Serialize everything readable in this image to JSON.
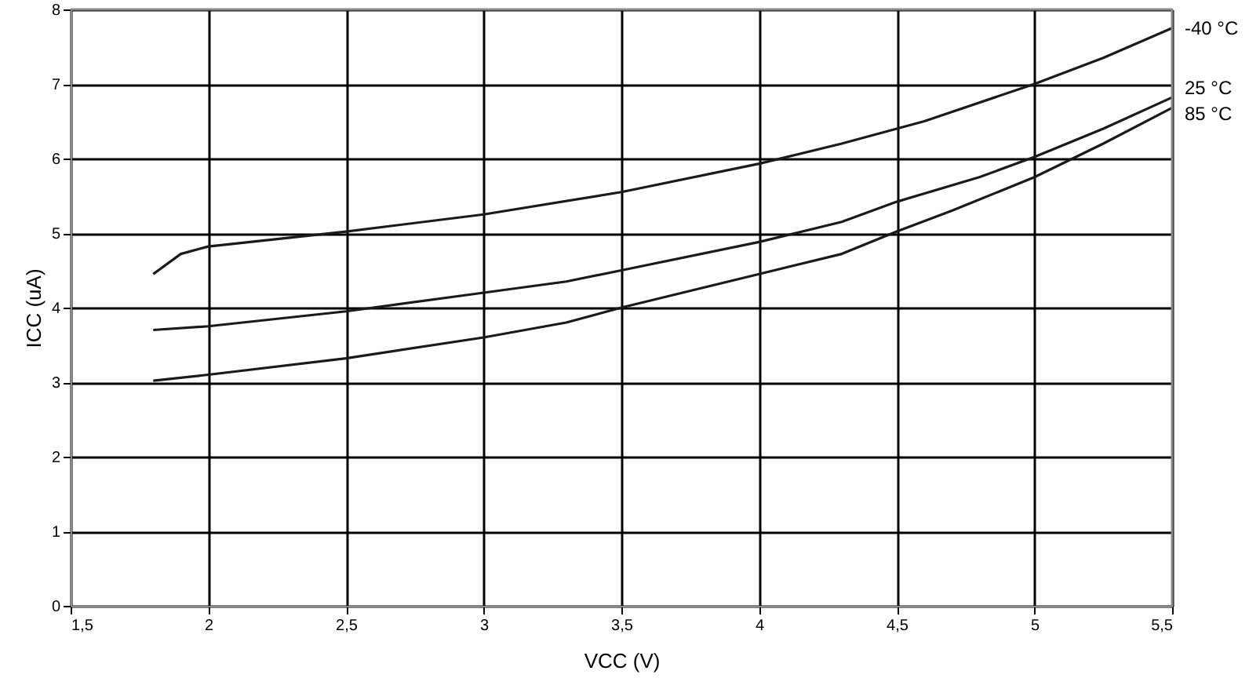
{
  "chart_data": {
    "type": "line",
    "xlabel": "VCC (V)",
    "ylabel": "ICC (uA)",
    "xlim": [
      1.5,
      5.5
    ],
    "ylim": [
      0,
      8
    ],
    "xticks": [
      {
        "value": 1.5,
        "label": "1,5"
      },
      2,
      {
        "value": 2.5,
        "label": "2,5"
      },
      3,
      {
        "value": 3.5,
        "label": "3,5"
      },
      4,
      {
        "value": 4.5,
        "label": "4,5"
      },
      5,
      {
        "value": 5.5,
        "label": "5,5"
      }
    ],
    "yticks": [
      0,
      1,
      2,
      3,
      4,
      5,
      6,
      7,
      8
    ],
    "grid": true,
    "legend": false,
    "marker": "none",
    "line_style": "solid",
    "series": [
      {
        "name": "-40 °C",
        "color": "#1a1a1a",
        "x": [
          1.8,
          1.9,
          2.0,
          2.5,
          3.0,
          3.5,
          4.0,
          4.3,
          4.6,
          5.0,
          5.25,
          5.5
        ],
        "values": [
          4.45,
          4.72,
          4.82,
          5.02,
          5.25,
          5.55,
          5.93,
          6.2,
          6.5,
          7.0,
          7.35,
          7.75
        ]
      },
      {
        "name": "25 °C",
        "color": "#1a1a1a",
        "x": [
          1.8,
          2.0,
          2.5,
          3.0,
          3.3,
          3.5,
          4.0,
          4.3,
          4.5,
          4.8,
          5.0,
          5.25,
          5.5
        ],
        "values": [
          3.7,
          3.75,
          3.95,
          4.2,
          4.35,
          4.5,
          4.88,
          5.15,
          5.42,
          5.75,
          6.02,
          6.4,
          6.82
        ]
      },
      {
        "name": "85 °C",
        "color": "#1a1a1a",
        "x": [
          1.8,
          2.0,
          2.5,
          3.0,
          3.3,
          3.5,
          4.0,
          4.3,
          4.5,
          4.7,
          5.0,
          5.25,
          5.5
        ],
        "values": [
          3.02,
          3.1,
          3.32,
          3.6,
          3.8,
          4.0,
          4.45,
          4.72,
          5.02,
          5.3,
          5.75,
          6.2,
          6.68
        ]
      }
    ]
  }
}
